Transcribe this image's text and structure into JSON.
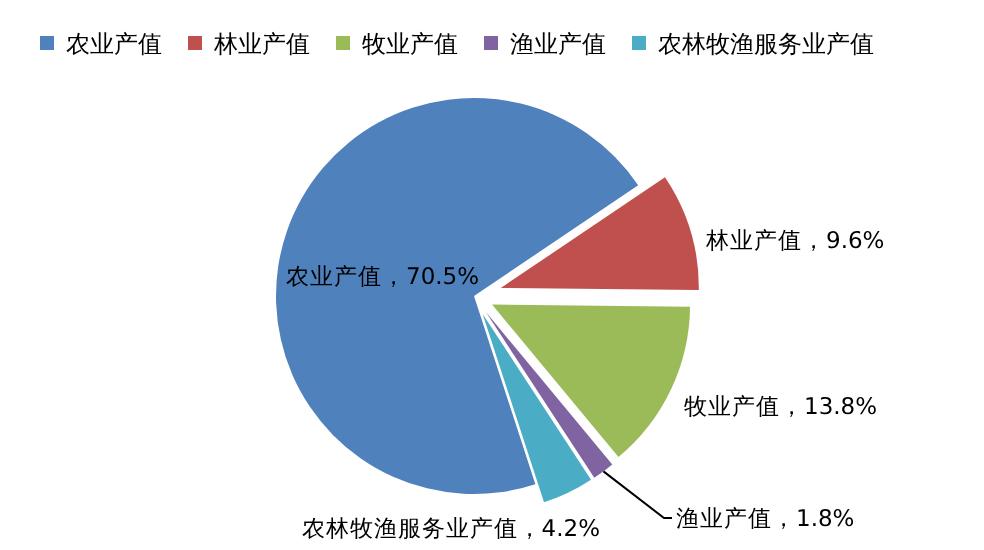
{
  "chart_data": {
    "type": "pie",
    "categories": [
      "农业产值",
      "林业产值",
      "牧业产值",
      "渔业产值",
      "农林牧渔服务业产值"
    ],
    "values": [
      70.5,
      9.6,
      13.8,
      1.8,
      4.2
    ],
    "colors": [
      "#4f81bd",
      "#c0504d",
      "#9bbb59",
      "#8064a2",
      "#4bacc6"
    ],
    "value_labels": [
      "，70.5%",
      "，9.6%",
      "，13.8%",
      "，1.8%",
      "，4.2%"
    ],
    "legend": "top"
  }
}
